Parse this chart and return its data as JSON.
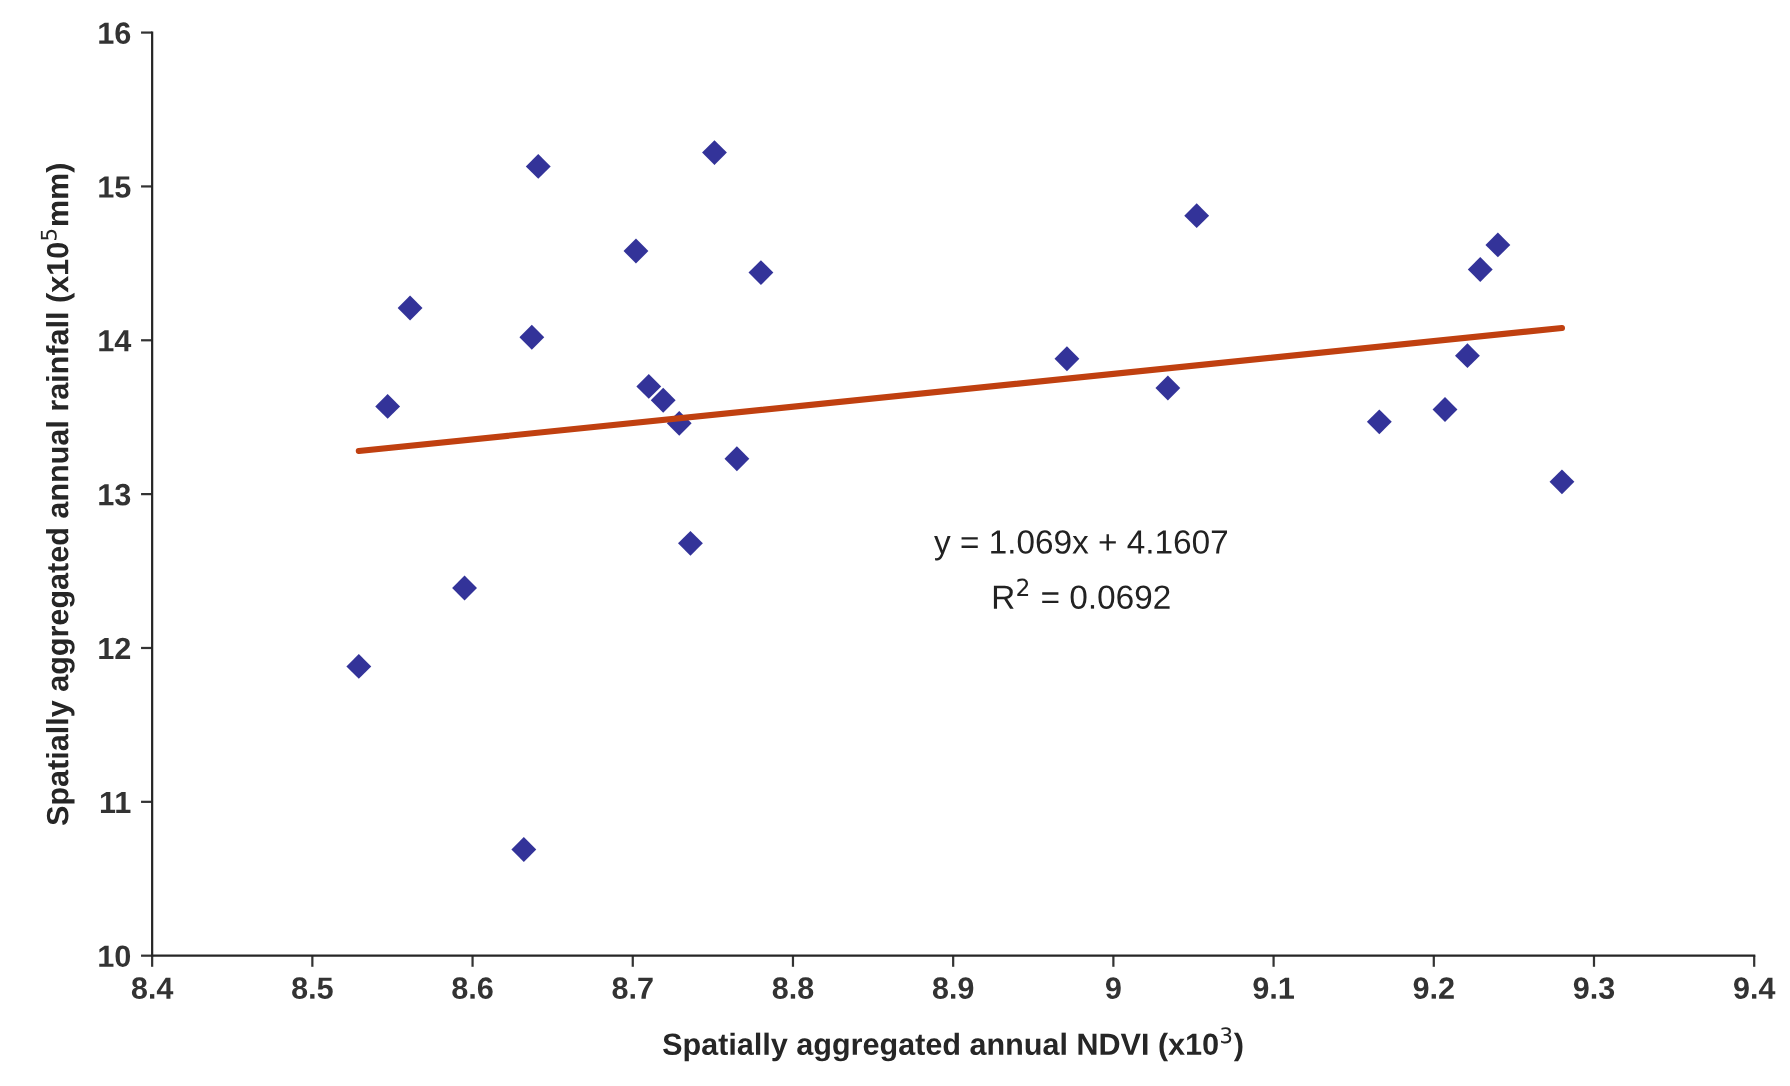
{
  "chart_data": {
    "type": "scatter",
    "xlabel": "Spatially aggregated annual NDVI (x10$^{3}$)",
    "ylabel": "Spatially aggregated annual rainfall (x10$^{5}$mm)",
    "annotations": [
      "y = 1.069x + 4.1607",
      "R$^{2}$ = 0.0692"
    ],
    "series": [
      {
        "color": "#333399",
        "marker": "diamond",
        "x": [
          8.529,
          8.547,
          8.561,
          8.595,
          8.632,
          8.637,
          8.641,
          8.702,
          8.71,
          8.719,
          8.729,
          8.736,
          8.751,
          8.765,
          8.78,
          8.971,
          9.034,
          9.052,
          9.166,
          9.207,
          9.221,
          9.229,
          9.24,
          9.28
        ],
        "values": [
          11.88,
          13.57,
          14.21,
          12.39,
          10.69,
          14.02,
          15.13,
          14.58,
          13.7,
          13.61,
          13.46,
          12.68,
          15.22,
          13.23,
          14.44,
          13.88,
          13.69,
          14.81,
          13.47,
          13.55,
          13.9,
          14.46,
          14.62,
          13.08
        ]
      },
      {
        "type": "line",
        "color": "#c04010",
        "marker": "none",
        "line_style": "solid",
        "x": [
          8.529,
          9.28
        ],
        "values": [
          13.28,
          14.08
        ]
      }
    ],
    "xlim": [
      8.4,
      9.4
    ],
    "ylim": [
      10,
      16
    ],
    "xticks": [
      8.4,
      8.5,
      8.6,
      8.7,
      8.8,
      8.9,
      9,
      9.1,
      9.2,
      9.3,
      9.4
    ],
    "yticks": [
      10,
      11,
      12,
      13,
      14,
      15,
      16
    ],
    "grid": false,
    "legend": false
  }
}
